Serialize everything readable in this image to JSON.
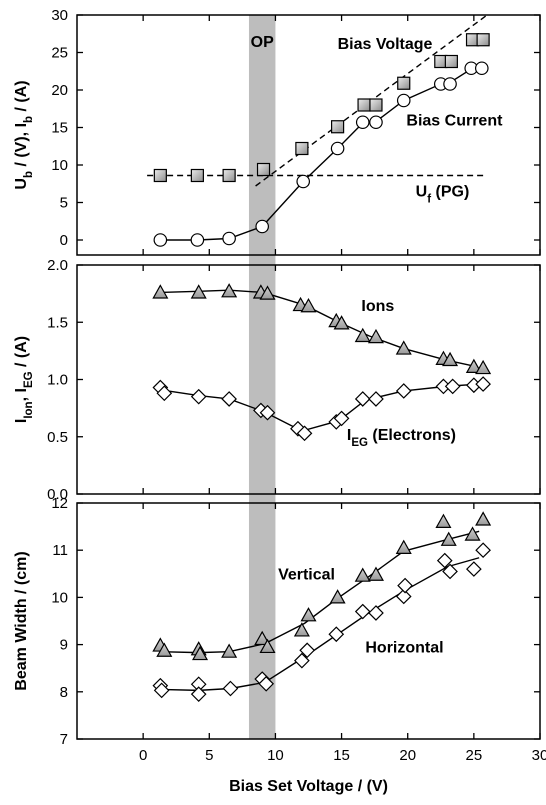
{
  "chart_data": [
    {
      "type": "line",
      "panel": "top",
      "xlim": [
        -5,
        30
      ],
      "ylim": [
        -2,
        30
      ],
      "x_ticks": [
        0,
        5,
        10,
        15,
        20,
        25,
        30
      ],
      "y_ticks": [
        0,
        5,
        10,
        15,
        20,
        25,
        30
      ],
      "ylabel_parts": [
        {
          "t": "U",
          "s": "n"
        },
        {
          "t": "b",
          "s": "sub"
        },
        {
          "t": " / (V), I",
          "s": "n"
        },
        {
          "t": "b",
          "s": "sub"
        },
        {
          "t": " / (A)",
          "s": "n"
        }
      ],
      "op_band_x": [
        8,
        10
      ],
      "op_label": "OP",
      "series": [
        {
          "name": "Bias Voltage",
          "marker": "square",
          "x": [
            1.3,
            4.1,
            6.5,
            9.1,
            12.0,
            14.7,
            16.7,
            17.6,
            19.7,
            22.5,
            23.3,
            24.9,
            25.7
          ],
          "y": [
            8.6,
            8.6,
            8.6,
            9.4,
            12.2,
            15.1,
            18.0,
            18.0,
            20.9,
            23.8,
            23.8,
            26.7,
            26.7
          ]
        },
        {
          "name": "Bias Current",
          "marker": "circle",
          "x": [
            1.3,
            4.1,
            6.5,
            9.0,
            12.1,
            14.7,
            16.6,
            17.6,
            19.7,
            22.5,
            23.2,
            24.8,
            25.6
          ],
          "y": [
            0.0,
            0.0,
            0.2,
            1.8,
            7.8,
            12.2,
            15.7,
            15.7,
            18.6,
            20.8,
            20.8,
            22.9,
            22.9
          ],
          "curve": [
            [
              1.3,
              0.0
            ],
            [
              4.1,
              0.0
            ],
            [
              6.5,
              0.2
            ],
            [
              9.0,
              1.8
            ],
            [
              12.1,
              7.8
            ],
            [
              14.7,
              12.2
            ],
            [
              16.6,
              15.6
            ],
            [
              17.6,
              15.8
            ],
            [
              19.7,
              18.6
            ],
            [
              22.5,
              20.8
            ],
            [
              23.2,
              21.0
            ],
            [
              24.8,
              22.8
            ],
            [
              25.6,
              22.9
            ]
          ]
        }
      ],
      "dashed_lines": [
        {
          "name": "bias-voltage-fit",
          "x": [
            8.5,
            26.0
          ],
          "y": [
            7.2,
            30.0
          ]
        },
        {
          "name": "uf-level",
          "x": [
            0.3,
            26.0
          ],
          "y": [
            8.6,
            8.6
          ]
        }
      ],
      "annotations": [
        {
          "name": "bias-voltage-label",
          "x": 14.7,
          "y": 25.5,
          "parts": [
            {
              "t": "Bias Voltage",
              "s": "n"
            }
          ]
        },
        {
          "name": "bias-current-label",
          "x": 19.9,
          "y": 15.3,
          "parts": [
            {
              "t": "Bias Current",
              "s": "n"
            }
          ]
        },
        {
          "name": "uf-label",
          "x": 20.6,
          "y": 5.8,
          "parts": [
            {
              "t": "U",
              "s": "n"
            },
            {
              "t": "f",
              "s": "sub"
            },
            {
              "t": " (PG)",
              "s": "n"
            }
          ]
        }
      ]
    },
    {
      "type": "line",
      "panel": "middle",
      "xlim": [
        -5,
        30
      ],
      "ylim": [
        0,
        2.0
      ],
      "x_ticks": [
        0,
        5,
        10,
        15,
        20,
        25,
        30
      ],
      "y_ticks": [
        0.0,
        0.5,
        1.0,
        1.5,
        2.0
      ],
      "y_tick_labels": [
        "0.0",
        "0.5",
        "1.0",
        "1.5",
        "2.0"
      ],
      "ylabel_parts": [
        {
          "t": "I",
          "s": "n"
        },
        {
          "t": "Ion",
          "s": "sub"
        },
        {
          "t": ", I",
          "s": "n"
        },
        {
          "t": "EG",
          "s": "sub"
        },
        {
          "t": " / (A)",
          "s": "n"
        }
      ],
      "series": [
        {
          "name": "Ions",
          "marker": "triangle",
          "x": [
            1.3,
            4.2,
            6.5,
            8.9,
            9.4,
            11.9,
            12.5,
            14.6,
            15.0,
            16.6,
            17.6,
            19.7,
            22.7,
            23.2,
            25.0,
            25.7
          ],
          "y": [
            1.76,
            1.76,
            1.77,
            1.76,
            1.75,
            1.65,
            1.64,
            1.51,
            1.49,
            1.38,
            1.37,
            1.27,
            1.18,
            1.17,
            1.11,
            1.1
          ],
          "curve": [
            [
              1.3,
              1.76
            ],
            [
              4.2,
              1.77
            ],
            [
              6.5,
              1.78
            ],
            [
              9.1,
              1.76
            ],
            [
              12.2,
              1.65
            ],
            [
              14.8,
              1.5
            ],
            [
              17.1,
              1.38
            ],
            [
              19.7,
              1.27
            ],
            [
              22.9,
              1.17
            ],
            [
              25.3,
              1.11
            ]
          ]
        },
        {
          "name": "Electrons",
          "marker": "diamond",
          "x": [
            1.3,
            1.6,
            4.2,
            6.5,
            8.9,
            9.4,
            11.7,
            12.2,
            14.6,
            15.0,
            16.6,
            17.6,
            19.7,
            22.7,
            23.4,
            25.0,
            25.7
          ],
          "y": [
            0.93,
            0.88,
            0.85,
            0.83,
            0.73,
            0.71,
            0.57,
            0.53,
            0.63,
            0.66,
            0.83,
            0.83,
            0.9,
            0.94,
            0.94,
            0.95,
            0.96
          ],
          "curve": [
            [
              1.3,
              0.91
            ],
            [
              4.2,
              0.86
            ],
            [
              6.5,
              0.83
            ],
            [
              9.1,
              0.72
            ],
            [
              12.0,
              0.55
            ],
            [
              14.8,
              0.64
            ],
            [
              16.8,
              0.82
            ],
            [
              19.7,
              0.9
            ],
            [
              22.9,
              0.94
            ],
            [
              25.4,
              0.96
            ]
          ]
        }
      ],
      "annotations": [
        {
          "name": "ions-label",
          "x": 16.5,
          "y": 1.6,
          "parts": [
            {
              "t": "Ions",
              "s": "n"
            }
          ]
        },
        {
          "name": "electrons-label",
          "x": 15.4,
          "y": 0.47,
          "parts": [
            {
              "t": "I",
              "s": "n"
            },
            {
              "t": "EG",
              "s": "sub"
            },
            {
              "t": " (Electrons)",
              "s": "n"
            }
          ]
        }
      ]
    },
    {
      "type": "line",
      "panel": "bottom",
      "xlim": [
        -5,
        30
      ],
      "ylim": [
        7,
        12
      ],
      "x_ticks": [
        0,
        5,
        10,
        15,
        20,
        25,
        30
      ],
      "y_ticks": [
        7,
        8,
        9,
        10,
        11,
        12
      ],
      "xlabel": "Bias Set Voltage / (V)",
      "ylabel_parts": [
        {
          "t": "Beam Width / (cm)",
          "s": "n"
        }
      ],
      "series": [
        {
          "name": "Vertical",
          "marker": "triangle",
          "x": [
            1.3,
            1.6,
            4.2,
            4.3,
            6.5,
            9.0,
            9.4,
            12.0,
            12.5,
            14.7,
            16.6,
            17.6,
            19.7,
            22.7,
            23.1,
            24.9,
            25.7
          ],
          "y": [
            8.98,
            8.87,
            8.9,
            8.8,
            8.85,
            9.12,
            8.95,
            9.3,
            9.62,
            10.0,
            10.46,
            10.48,
            11.05,
            11.6,
            11.22,
            11.33,
            11.65
          ],
          "curve": [
            [
              1.3,
              8.85
            ],
            [
              4.2,
              8.83
            ],
            [
              6.5,
              8.85
            ],
            [
              9.2,
              9.02
            ],
            [
              12.2,
              9.45
            ],
            [
              14.7,
              9.98
            ],
            [
              17.1,
              10.45
            ],
            [
              19.7,
              10.98
            ],
            [
              22.9,
              11.22
            ],
            [
              25.4,
              11.4
            ]
          ]
        },
        {
          "name": "Horizontal",
          "marker": "diamond",
          "x": [
            1.3,
            1.4,
            4.2,
            4.2,
            6.6,
            9.0,
            9.3,
            12.0,
            12.4,
            14.6,
            16.6,
            17.6,
            19.7,
            19.8,
            22.8,
            23.2,
            25.0,
            25.7
          ],
          "y": [
            8.13,
            8.03,
            8.16,
            7.95,
            8.07,
            8.27,
            8.17,
            8.66,
            8.88,
            9.22,
            9.7,
            9.67,
            10.02,
            10.25,
            10.78,
            10.55,
            10.6,
            11.0
          ],
          "curve": [
            [
              1.3,
              8.05
            ],
            [
              4.2,
              8.03
            ],
            [
              6.6,
              8.07
            ],
            [
              9.2,
              8.2
            ],
            [
              12.2,
              8.74
            ],
            [
              14.6,
              9.2
            ],
            [
              17.1,
              9.68
            ],
            [
              19.8,
              10.15
            ],
            [
              23.0,
              10.65
            ],
            [
              25.4,
              10.84
            ]
          ]
        }
      ],
      "annotations": [
        {
          "name": "vertical-label",
          "x": 10.2,
          "y": 10.38,
          "parts": [
            {
              "t": "Vertical",
              "s": "n"
            }
          ]
        },
        {
          "name": "horizontal-label",
          "x": 16.8,
          "y": 8.83,
          "parts": [
            {
              "t": "Horizontal",
              "s": "n"
            }
          ]
        }
      ]
    }
  ]
}
